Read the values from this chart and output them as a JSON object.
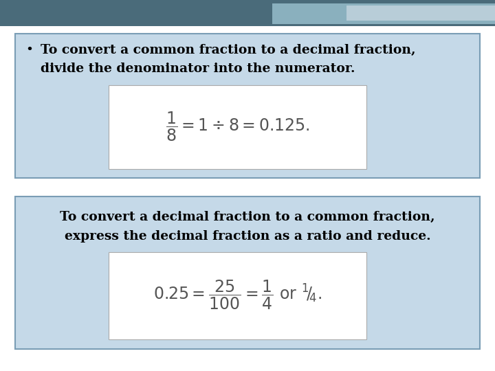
{
  "bg_color": "#ffffff",
  "header_bar_color": "#4a6b7a",
  "header_accent_color": "#8ab0be",
  "box1_bg": "#c5d9e8",
  "box1_border": "#7a9db5",
  "box2_bg": "#c5d9e8",
  "box2_border": "#7a9db5",
  "bullet_text_line1": "To convert a common fraction to a decimal fraction,",
  "bullet_text_line2": "divide the denominator into the numerator.",
  "box2_text_line1": "To convert a decimal fraction to a common fraction,",
  "box2_text_line2": "express the decimal fraction as a ratio and reduce.",
  "top_bar_height": 0.07,
  "font_size_text": 13.5,
  "font_size_formula": 17
}
